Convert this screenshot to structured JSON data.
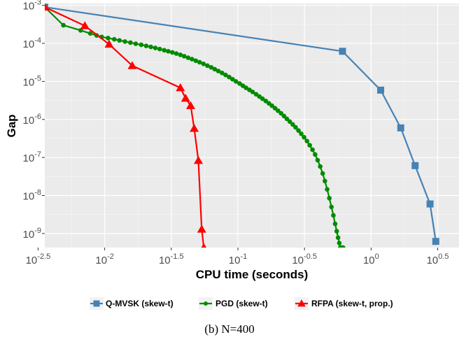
{
  "chart_data": {
    "type": "line",
    "title": "",
    "xlabel": "CPU time (seconds)",
    "ylabel": "Gap",
    "x_scale": "log10",
    "y_scale": "log10",
    "xlim": [
      0.00355,
      4.57
    ],
    "ylim": [
      4.27e-10,
      0.00112
    ],
    "grid": true,
    "legend_position": "bottom",
    "caption": "(b) N=400",
    "x_ticks": [
      {
        "value": 0.003162,
        "base": "10",
        "exp": "-2.5"
      },
      {
        "value": 0.01,
        "base": "10",
        "exp": "-2"
      },
      {
        "value": 0.031623,
        "base": "10",
        "exp": "-1.5"
      },
      {
        "value": 0.1,
        "base": "10",
        "exp": "-1"
      },
      {
        "value": 0.316228,
        "base": "10",
        "exp": "-0.5"
      },
      {
        "value": 1,
        "base": "10",
        "exp": "0"
      },
      {
        "value": 3.162278,
        "base": "10",
        "exp": "0.5"
      }
    ],
    "y_ticks": [
      {
        "value": 0.001,
        "base": "10",
        "exp": "-3"
      },
      {
        "value": 0.0001,
        "base": "10",
        "exp": "-4"
      },
      {
        "value": 1e-05,
        "base": "10",
        "exp": "-5"
      },
      {
        "value": 1e-06,
        "base": "10",
        "exp": "-6"
      },
      {
        "value": 1e-07,
        "base": "10",
        "exp": "-7"
      },
      {
        "value": 1e-08,
        "base": "10",
        "exp": "-8"
      },
      {
        "value": 1e-09,
        "base": "10",
        "exp": "-9"
      }
    ],
    "series": [
      {
        "name": "Q-MVSK (skew-t)",
        "color": "#4682b4",
        "marker": "square",
        "x": [
          0.00355,
          0.61,
          1.18,
          1.67,
          2.14,
          2.77,
          3.06
        ],
        "y": [
          0.0009,
          6.2e-05,
          5.9e-06,
          6e-07,
          6.1e-08,
          6e-09,
          6.2e-10
        ]
      },
      {
        "name": "PGD (skew-t)",
        "color": "#008b00",
        "marker": "circle",
        "x": [
          0.00355,
          0.0049,
          0.0066,
          0.0078,
          0.0087,
          0.0095,
          0.0106,
          0.0118,
          0.0129,
          0.0142,
          0.0156,
          0.0171,
          0.0188,
          0.0205,
          0.0222,
          0.024,
          0.0259,
          0.028,
          0.03,
          0.0322,
          0.0345,
          0.037,
          0.0395,
          0.0423,
          0.0452,
          0.0483,
          0.0516,
          0.0552,
          0.059,
          0.063,
          0.067,
          0.0713,
          0.076,
          0.0808,
          0.086,
          0.0912,
          0.0967,
          0.103,
          0.109,
          0.115,
          0.122,
          0.129,
          0.137,
          0.145,
          0.153,
          0.162,
          0.171,
          0.18,
          0.19,
          0.2,
          0.211,
          0.222,
          0.233,
          0.245,
          0.258,
          0.271,
          0.285,
          0.299,
          0.314,
          0.33,
          0.346,
          0.363,
          0.38,
          0.397,
          0.415,
          0.433,
          0.45,
          0.468,
          0.486,
          0.504,
          0.521,
          0.537,
          0.552,
          0.565,
          0.577,
          0.587,
          0.596,
          0.603,
          0.61,
          0.616
        ],
        "y": [
          0.0009,
          0.0003,
          0.00022,
          0.000183,
          0.000162,
          0.000148,
          0.000138,
          0.000128,
          0.00012,
          0.000112,
          0.000105,
          9.8e-05,
          9.2e-05,
          8.6e-05,
          8.1e-05,
          7.6e-05,
          7.1e-05,
          6.6e-05,
          6.2e-05,
          5.8e-05,
          5.4e-05,
          5e-05,
          4.6e-05,
          4.2e-05,
          3.85e-05,
          3.5e-05,
          3.2e-05,
          2.9e-05,
          2.6e-05,
          2.35e-05,
          2.1e-05,
          1.88e-05,
          1.67e-05,
          1.48e-05,
          1.3e-05,
          1.14e-05,
          1e-05,
          8.8e-06,
          7.7e-06,
          6.8e-06,
          6e-06,
          5.3e-06,
          4.6e-06,
          4e-06,
          3.5e-06,
          3.05e-06,
          2.65e-06,
          2.3e-06,
          1.98e-06,
          1.7e-06,
          1.45e-06,
          1.23e-06,
          1.04e-06,
          8.8e-07,
          7.4e-07,
          6.2e-07,
          5.1e-07,
          4.2e-07,
          3.4e-07,
          2.7e-07,
          2.1e-07,
          1.6e-07,
          1.2e-07,
          8.5e-08,
          5.8e-08,
          3.8e-08,
          2.4e-08,
          1.45e-08,
          8.5e-09,
          5e-09,
          3e-09,
          1.8e-09,
          1.15e-09,
          7.8e-10,
          5.6e-10,
          4.27e-10,
          4.27e-10,
          4.27e-10,
          4.27e-10,
          4.27e-10
        ]
      },
      {
        "name": "RFPA (skew-t, prop.)",
        "color": "#ff0000",
        "marker": "triangle",
        "x": [
          0.00355,
          0.0071,
          0.0108,
          0.0161,
          0.037,
          0.0405,
          0.0442,
          0.047,
          0.0505,
          0.0535,
          0.0555
        ],
        "y": [
          0.0009,
          0.00029,
          9.5e-05,
          2.6e-05,
          6.8e-06,
          3.6e-06,
          2.3e-06,
          5.8e-07,
          8.3e-08,
          1.3e-09,
          4.27e-10
        ]
      }
    ]
  }
}
